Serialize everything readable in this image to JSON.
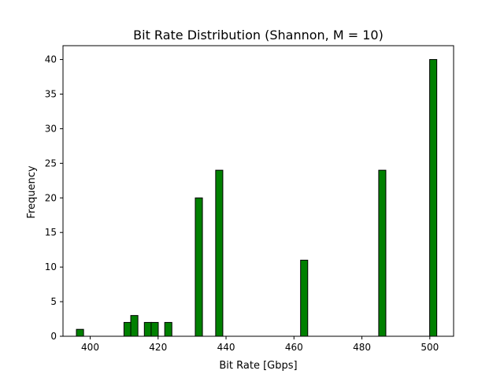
{
  "chart_data": {
    "type": "bar",
    "title": "Bit Rate Distribution (Shannon, M = 10)",
    "xlabel": "Bit Rate [Gbps]",
    "ylabel": "Frequency",
    "xlim": [
      392,
      507
    ],
    "ylim": [
      0,
      42
    ],
    "xticks": [
      400,
      420,
      440,
      460,
      480,
      500
    ],
    "yticks": [
      0,
      5,
      10,
      15,
      20,
      25,
      30,
      35,
      40
    ],
    "bin_width": 2.1,
    "bar_color": "#008000",
    "edge_color": "#000000",
    "grid": false,
    "bins": [
      {
        "x": 397.0,
        "count": 1
      },
      {
        "x": 411.0,
        "count": 2
      },
      {
        "x": 413.0,
        "count": 3
      },
      {
        "x": 417.0,
        "count": 2
      },
      {
        "x": 419.0,
        "count": 2
      },
      {
        "x": 423.0,
        "count": 2
      },
      {
        "x": 432.0,
        "count": 20
      },
      {
        "x": 438.0,
        "count": 24
      },
      {
        "x": 463.0,
        "count": 11
      },
      {
        "x": 486.0,
        "count": 24
      },
      {
        "x": 501.0,
        "count": 40
      }
    ]
  }
}
